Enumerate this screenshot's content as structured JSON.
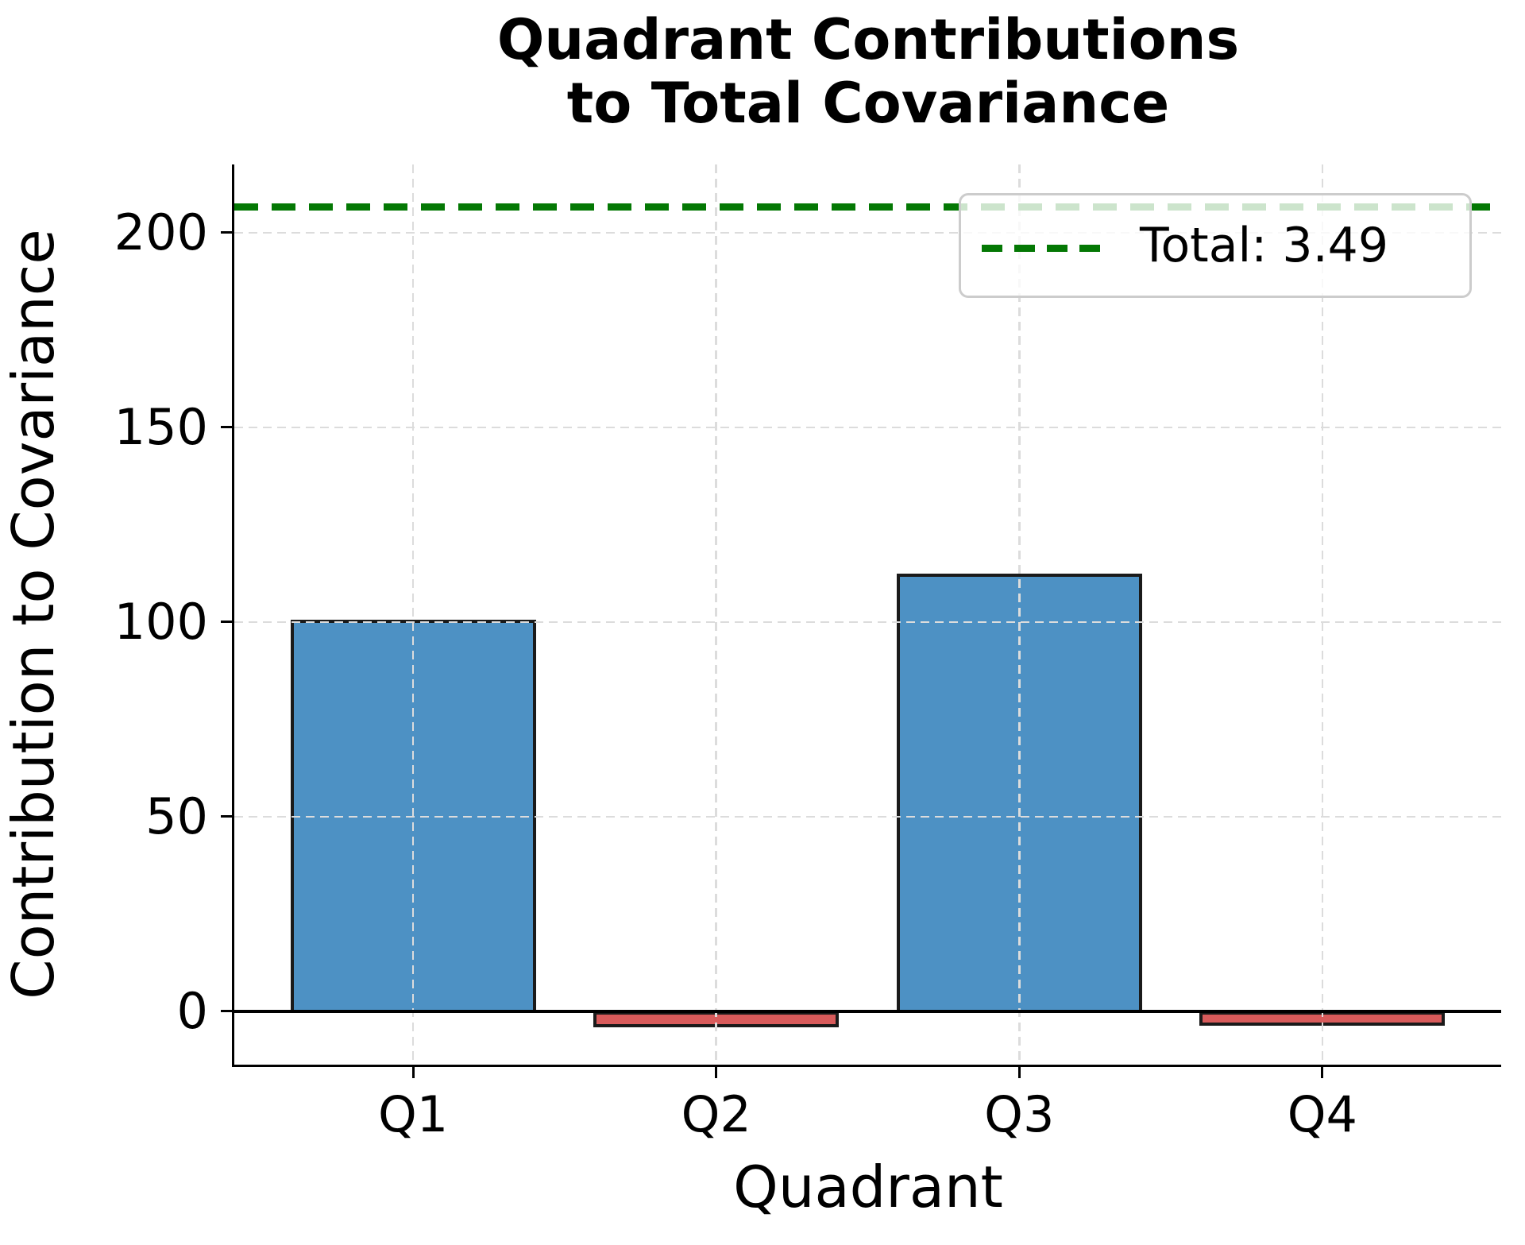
{
  "header": {
    "title_lines": [
      "Quadrant Contributions",
      "to Total Covariance"
    ]
  },
  "legend": {
    "total_label": "Total: 3.49"
  },
  "colors": {
    "bar_positive": "#4d91c4",
    "bar_negative": "#d85b5b",
    "bar_edge": "#1a1a1a",
    "total_line": "#047804",
    "grid": "#dcdcdc",
    "axis": "#000000",
    "legend_border": "#cccccc"
  },
  "chart_data": {
    "type": "bar",
    "title": "Quadrant Contributions to Total Covariance",
    "categories": [
      "Q1",
      "Q2",
      "Q3",
      "Q4"
    ],
    "values": [
      100.5,
      -3.8,
      112.4,
      -3.2
    ],
    "bar_colors": [
      "#4d91c4",
      "#d85b5b",
      "#4d91c4",
      "#d85b5b"
    ],
    "xlabel": "Quadrant",
    "ylabel": "Contribution to Covariance",
    "yticks": [
      0,
      50,
      100,
      150,
      200
    ],
    "ylim": [
      -13.7,
      217.5
    ],
    "xlim": [
      -0.59,
      3.59
    ],
    "bar_width": 0.81,
    "grid": true,
    "grid_style": "dashed",
    "zero_line": true,
    "total_line": {
      "value": 206.5,
      "label": "Total: 3.49",
      "color": "#047804",
      "style": "dashed"
    },
    "legend_position": "upper right"
  }
}
